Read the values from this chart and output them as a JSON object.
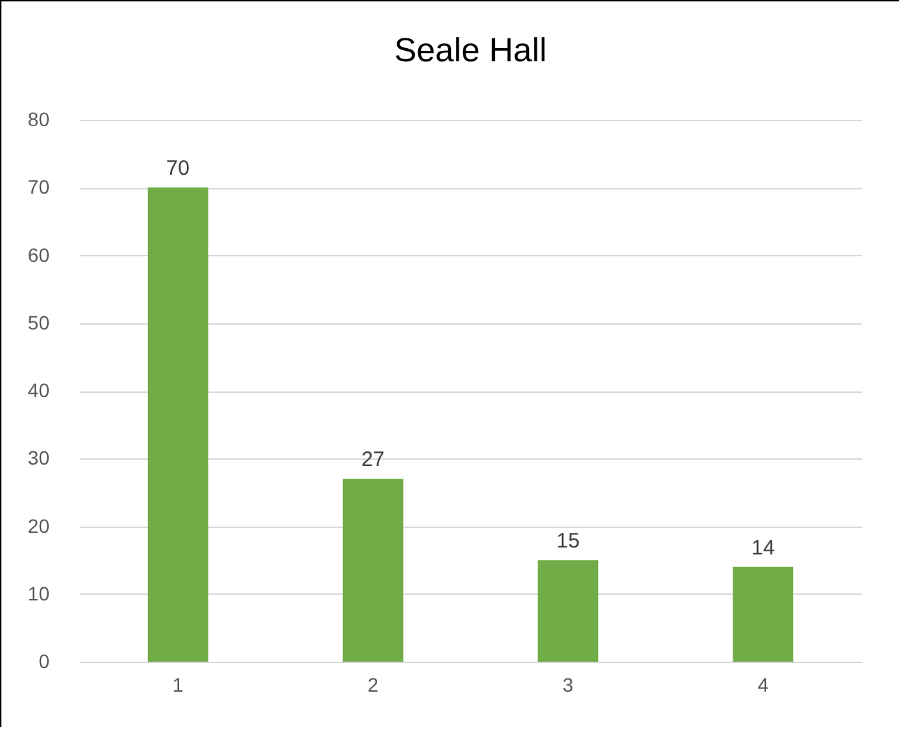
{
  "chart_data": {
    "type": "bar",
    "title": "Seale Hall",
    "categories": [
      "1",
      "2",
      "3",
      "4"
    ],
    "values": [
      70,
      27,
      15,
      14
    ],
    "color": "#70ad47",
    "ylim": [
      0,
      80
    ],
    "yticks": [
      0,
      10,
      20,
      30,
      40,
      50,
      60,
      70,
      80
    ],
    "grid": "y",
    "data_labels": true
  }
}
